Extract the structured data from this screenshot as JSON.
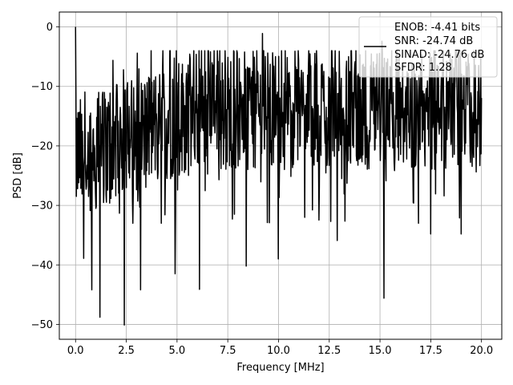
{
  "chart_data": {
    "type": "line",
    "title": "",
    "xlabel": "Frequency [MHz]",
    "ylabel": "PSD [dB]",
    "xlim": [
      -0.8,
      21.0
    ],
    "ylim": [
      -52.5,
      2.5
    ],
    "xticks": [
      0.0,
      2.5,
      5.0,
      7.5,
      10.0,
      12.5,
      15.0,
      17.5,
      20.0
    ],
    "xtick_labels": [
      "0.0",
      "2.5",
      "5.0",
      "7.5",
      "10.0",
      "12.5",
      "15.0",
      "17.5",
      "20.0"
    ],
    "yticks": [
      0,
      -10,
      -20,
      -30,
      -40,
      -50
    ],
    "ytick_labels": [
      "0",
      "−10",
      "−20",
      "−30",
      "−40",
      "−50"
    ],
    "grid": true,
    "legend_position": "top-right",
    "legend_lines": [
      "ENOB: -4.41 bits",
      "SNR: -24.74 dB",
      "SINAD: -24.76 dB",
      "SFDR: 1.28"
    ],
    "series": [
      {
        "color": "#000000",
        "x_range": [
          0.0,
          20.0
        ],
        "num_points": 1000,
        "features": [
          {
            "x": 0.0,
            "y": 0.0
          },
          {
            "x": 0.4,
            "y": -38.9
          },
          {
            "x": 0.8,
            "y": -44.2
          },
          {
            "x": 1.2,
            "y": -48.8
          },
          {
            "x": 2.4,
            "y": -50.1
          },
          {
            "x": 3.2,
            "y": -44.2
          },
          {
            "x": 4.9,
            "y": -41.5
          },
          {
            "x": 6.1,
            "y": -44.1
          },
          {
            "x": 8.4,
            "y": -40.2
          },
          {
            "x": 10.0,
            "y": -39.0
          },
          {
            "x": 12.9,
            "y": -35.9
          },
          {
            "x": 15.2,
            "y": -45.6
          },
          {
            "x": 17.5,
            "y": -34.8
          },
          {
            "x": 19.0,
            "y": -34.8
          },
          {
            "x": 9.2,
            "y": -1.1
          },
          {
            "x": 15.1,
            "y": -2.4
          }
        ]
      }
    ]
  }
}
